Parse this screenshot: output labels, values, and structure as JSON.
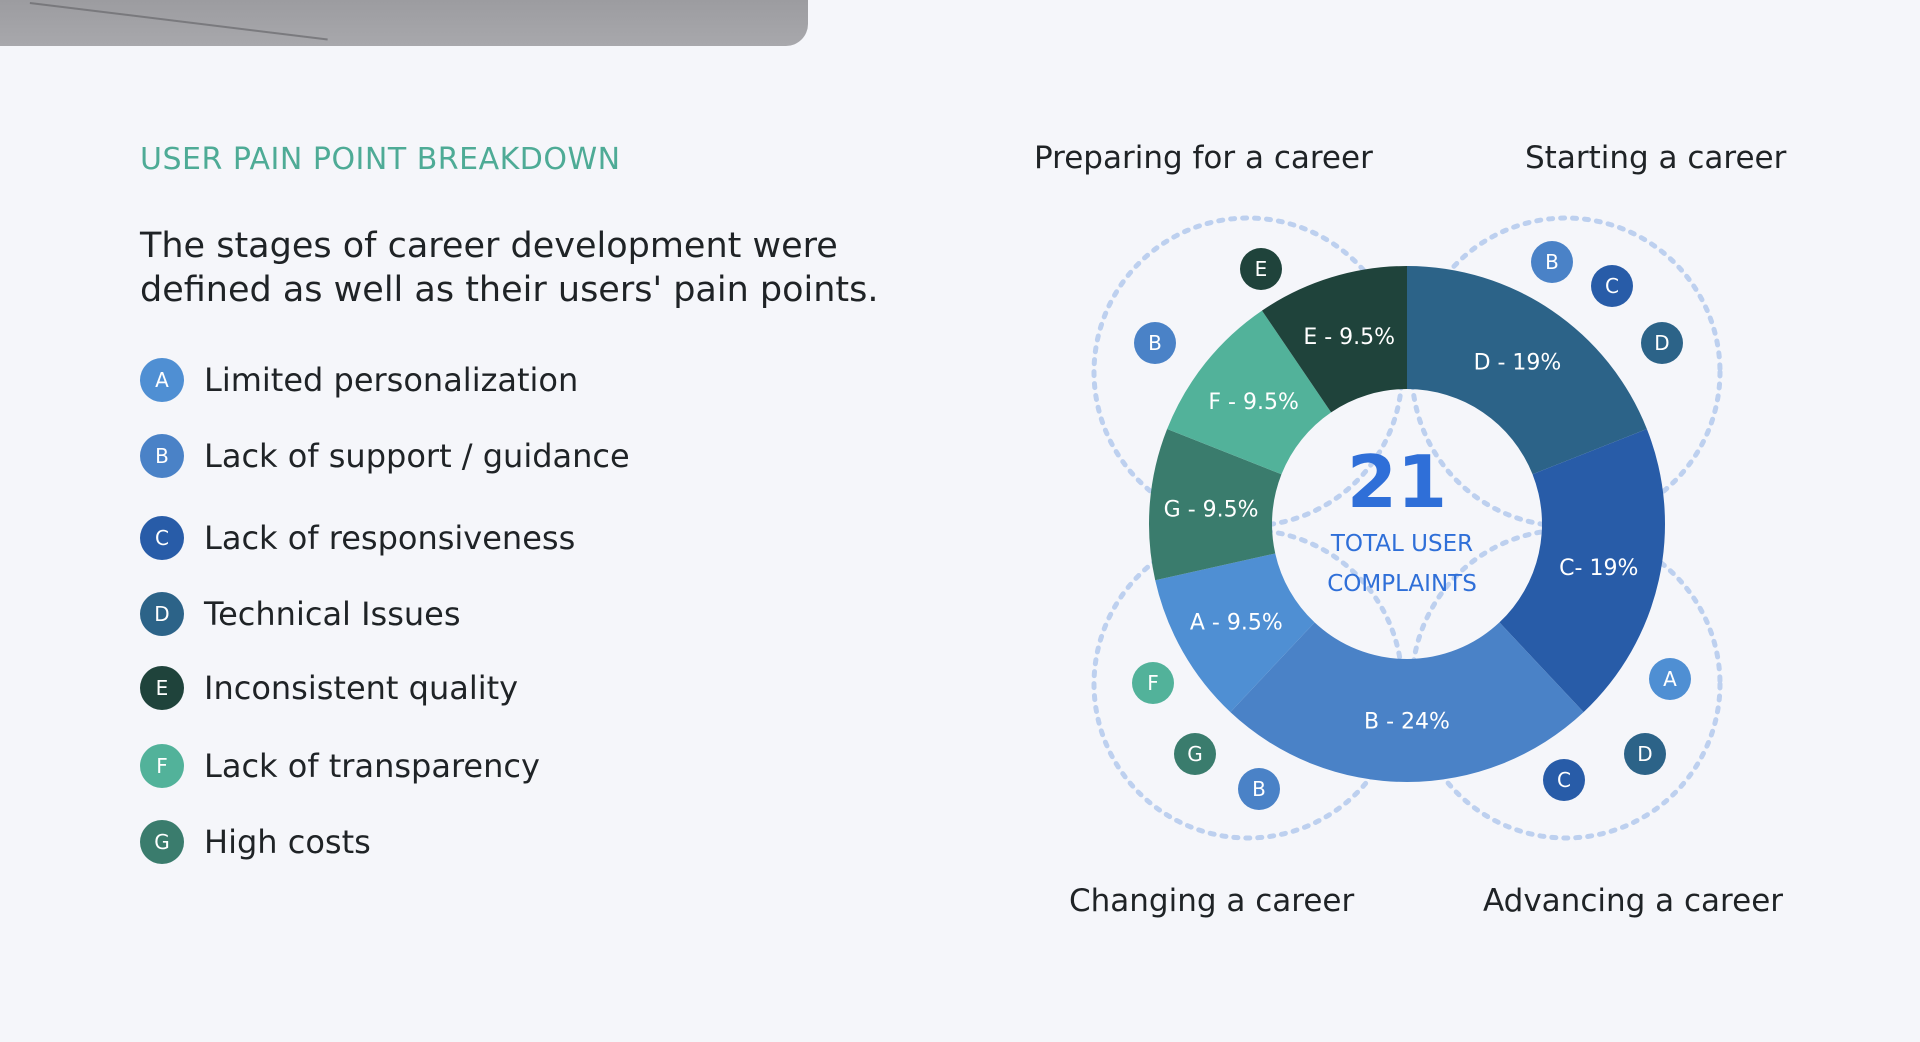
{
  "section_title": "USER PAIN POINT BREAKDOWN",
  "lead": "The stages of career development were defined as well as their users' pain points.",
  "legend": [
    {
      "letter": "A",
      "label": "Limited personalization",
      "color": "#4f8fd3"
    },
    {
      "letter": "B",
      "label": "Lack of support / guidance",
      "color": "#4a82c7"
    },
    {
      "letter": "C",
      "label": "Lack of responsiveness",
      "color": "#285ca8"
    },
    {
      "letter": "D",
      "label": "Technical Issues",
      "color": "#2c6388"
    },
    {
      "letter": "E",
      "label": "Inconsistent quality",
      "color": "#1f433b"
    },
    {
      "letter": "F",
      "label": "Lack of transparency",
      "color": "#52b29a"
    },
    {
      "letter": "G",
      "label": "High costs",
      "color": "#3a7c6d"
    }
  ],
  "stages": [
    "Preparing for a career",
    "Starting a career",
    "Changing a career",
    "Advancing a career"
  ],
  "stage_badges": [
    [
      "E",
      "B"
    ],
    [
      "B",
      "C",
      "D"
    ],
    [
      "F",
      "G",
      "B"
    ],
    [
      "A",
      "D",
      "C"
    ]
  ],
  "center": {
    "value": "21",
    "line1": "TOTAL USER",
    "line2": "COMPLAINTS"
  },
  "colors": {
    "accent": "#4eab96",
    "center_text": "#2f6fd8",
    "ring_dots": "#bdd0ef"
  },
  "chart_data": {
    "type": "pie",
    "title": "",
    "slices": [
      {
        "label": "D - 19%",
        "category": "D",
        "value": 19,
        "color": "#2c6388"
      },
      {
        "label": "C- 19%",
        "category": "C",
        "value": 19,
        "color": "#285ca8"
      },
      {
        "label": "B - 24%",
        "category": "B",
        "value": 24,
        "color": "#4a82c7"
      },
      {
        "label": "A - 9.5%",
        "category": "A",
        "value": 9.5,
        "color": "#4f8fd3"
      },
      {
        "label": "G - 9.5%",
        "category": "G",
        "value": 9.5,
        "color": "#3a7c6d"
      },
      {
        "label": "F - 9.5%",
        "category": "F",
        "value": 9.5,
        "color": "#52b29a"
      },
      {
        "label": "E - 9.5%",
        "category": "E",
        "value": 9.5,
        "color": "#1f433b"
      }
    ]
  }
}
